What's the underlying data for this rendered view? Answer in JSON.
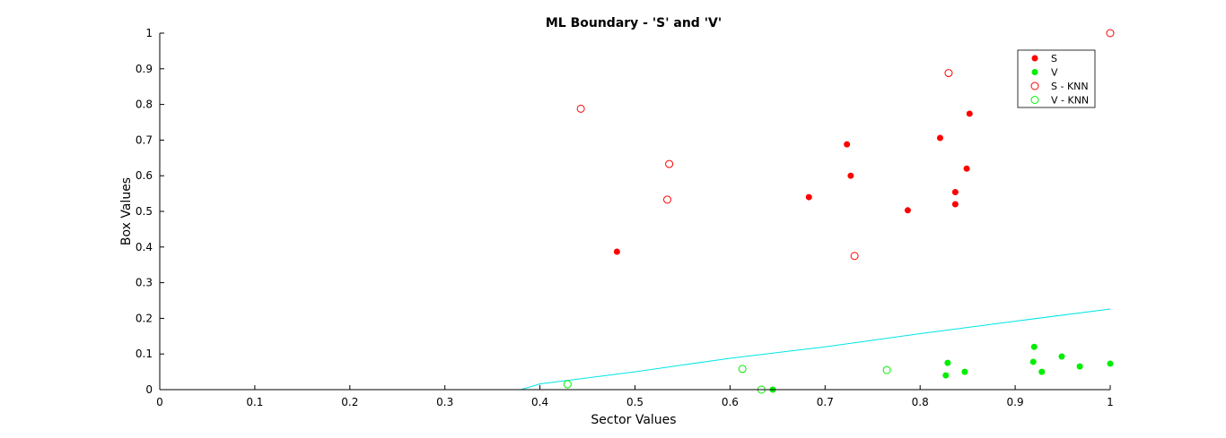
{
  "chart_data": {
    "type": "scatter",
    "title": "ML Boundary - 'S' and 'V'",
    "xlabel": "Sector Values",
    "ylabel": "Box Values",
    "xlim": [
      0,
      1
    ],
    "ylim": [
      0,
      1
    ],
    "xticks": [
      "0",
      "0.1",
      "0.2",
      "0.3",
      "0.4",
      "0.5",
      "0.6",
      "0.7",
      "0.8",
      "0.9",
      "1"
    ],
    "yticks": [
      "0",
      "0.1",
      "0.2",
      "0.3",
      "0.4",
      "0.5",
      "0.6",
      "0.7",
      "0.8",
      "0.9",
      "1"
    ],
    "grid": false,
    "legend_position": "top-right",
    "series": [
      {
        "name": "S",
        "marker": "filled-circle",
        "color": "#ff0000",
        "points": [
          [
            0.481,
            0.387
          ],
          [
            0.683,
            0.54
          ],
          [
            0.723,
            0.688
          ],
          [
            0.727,
            0.6
          ],
          [
            0.787,
            0.503
          ],
          [
            0.821,
            0.706
          ],
          [
            0.837,
            0.554
          ],
          [
            0.837,
            0.52
          ],
          [
            0.849,
            0.62
          ],
          [
            0.852,
            0.774
          ]
        ]
      },
      {
        "name": "V",
        "marker": "filled-circle",
        "color": "#00ee00",
        "points": [
          [
            0.645,
            0.0
          ],
          [
            0.827,
            0.04
          ],
          [
            0.829,
            0.075
          ],
          [
            0.847,
            0.05
          ],
          [
            0.919,
            0.078
          ],
          [
            0.92,
            0.12
          ],
          [
            0.928,
            0.05
          ],
          [
            0.949,
            0.093
          ],
          [
            0.968,
            0.065
          ],
          [
            1.0,
            0.073
          ]
        ]
      },
      {
        "name": "S - KNN",
        "marker": "open-circle",
        "color": "#ff0000",
        "points": [
          [
            0.443,
            0.788
          ],
          [
            0.534,
            0.533
          ],
          [
            0.536,
            0.633
          ],
          [
            0.731,
            0.375
          ],
          [
            0.83,
            0.888
          ],
          [
            1.0,
            1.0
          ]
        ]
      },
      {
        "name": "V - KNN",
        "marker": "open-circle",
        "color": "#00ee00",
        "points": [
          [
            0.429,
            0.015
          ],
          [
            0.613,
            0.058
          ],
          [
            0.633,
            0.0
          ],
          [
            0.765,
            0.055
          ]
        ]
      }
    ],
    "boundary": {
      "color": "#00e5e5",
      "points": [
        [
          0.38,
          0.0
        ],
        [
          0.4,
          0.016
        ],
        [
          0.5,
          0.05
        ],
        [
          0.6,
          0.088
        ],
        [
          0.7,
          0.12
        ],
        [
          0.8,
          0.157
        ],
        [
          0.9,
          0.192
        ],
        [
          1.0,
          0.226
        ]
      ]
    }
  }
}
